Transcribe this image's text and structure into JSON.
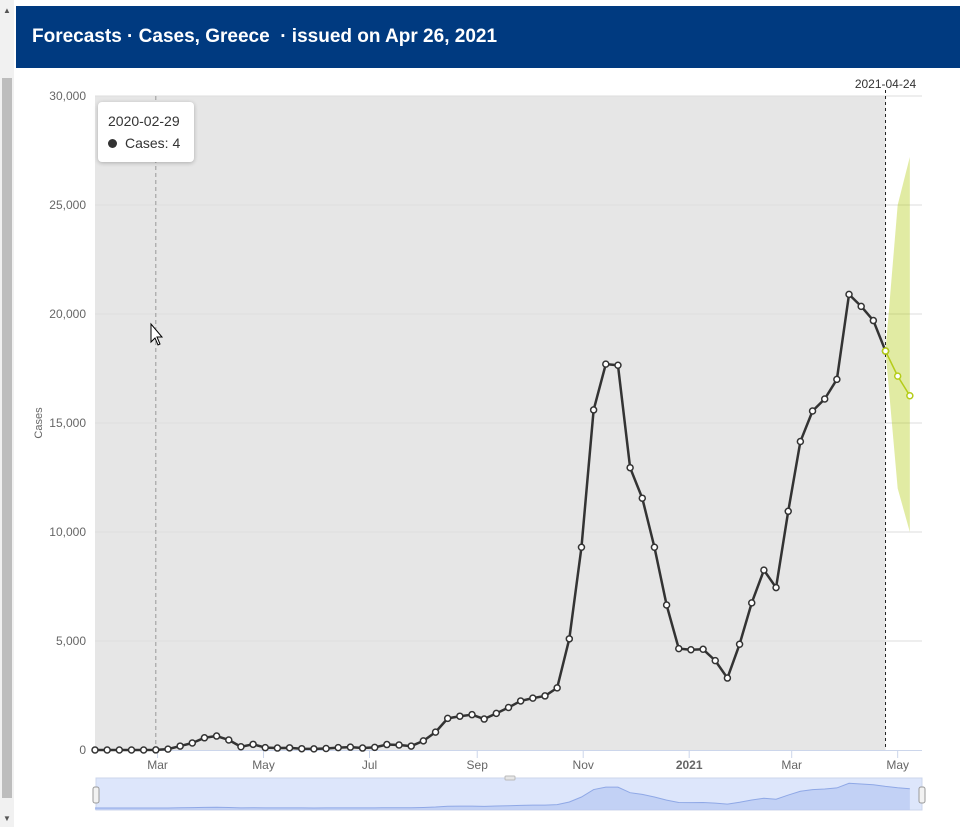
{
  "header": {
    "title": "Forecasts · Cases, Greece  · issued on Apr 26, 2021"
  },
  "colors": {
    "header_bg": "#003a80",
    "series": "#333333",
    "forecast": "#b5cc18",
    "plot_bg": "#e6e6e6"
  },
  "tooltip": {
    "date": "2020-02-29",
    "label": "Cases: 4"
  },
  "chart_data": {
    "type": "line",
    "ylabel": "Cases",
    "ylim": [
      0,
      30000
    ],
    "y_ticks": [
      "0",
      "5,000",
      "10,000",
      "15,000",
      "20,000",
      "25,000",
      "30,000"
    ],
    "x_ticks": [
      "Mar",
      "May",
      "Jul",
      "Sep",
      "Nov",
      "2021",
      "Mar",
      "May"
    ],
    "xlim": [
      "2020-01-25",
      "2021-05-15"
    ],
    "grid": true,
    "cursor_date": "2020-02-29",
    "forecast_marker": {
      "label": "2021-04-24",
      "date": "2021-04-24"
    },
    "series": [
      {
        "name": "Cases",
        "points": [
          [
            "2020-01-25",
            0
          ],
          [
            "2020-02-01",
            0
          ],
          [
            "2020-02-08",
            0
          ],
          [
            "2020-02-15",
            0
          ],
          [
            "2020-02-22",
            0
          ],
          [
            "2020-02-29",
            4
          ],
          [
            "2020-03-07",
            40
          ],
          [
            "2020-03-14",
            180
          ],
          [
            "2020-03-21",
            320
          ],
          [
            "2020-03-28",
            560
          ],
          [
            "2020-04-04",
            640
          ],
          [
            "2020-04-11",
            460
          ],
          [
            "2020-04-18",
            150
          ],
          [
            "2020-04-25",
            260
          ],
          [
            "2020-05-02",
            110
          ],
          [
            "2020-05-09",
            90
          ],
          [
            "2020-05-16",
            100
          ],
          [
            "2020-05-23",
            60
          ],
          [
            "2020-05-30",
            50
          ],
          [
            "2020-06-06",
            70
          ],
          [
            "2020-06-13",
            110
          ],
          [
            "2020-06-20",
            130
          ],
          [
            "2020-06-27",
            90
          ],
          [
            "2020-07-04",
            120
          ],
          [
            "2020-07-11",
            250
          ],
          [
            "2020-07-18",
            230
          ],
          [
            "2020-07-25",
            180
          ],
          [
            "2020-08-01",
            420
          ],
          [
            "2020-08-08",
            820
          ],
          [
            "2020-08-15",
            1450
          ],
          [
            "2020-08-22",
            1550
          ],
          [
            "2020-08-29",
            1620
          ],
          [
            "2020-09-05",
            1420
          ],
          [
            "2020-09-12",
            1680
          ],
          [
            "2020-09-19",
            1950
          ],
          [
            "2020-09-26",
            2250
          ],
          [
            "2020-10-03",
            2380
          ],
          [
            "2020-10-10",
            2480
          ],
          [
            "2020-10-17",
            2850
          ],
          [
            "2020-10-24",
            5100
          ],
          [
            "2020-10-31",
            9300
          ],
          [
            "2020-11-07",
            15600
          ],
          [
            "2020-11-14",
            17700
          ],
          [
            "2020-11-21",
            17650
          ],
          [
            "2020-11-28",
            12950
          ],
          [
            "2020-12-05",
            11550
          ],
          [
            "2020-12-12",
            9300
          ],
          [
            "2020-12-19",
            6650
          ],
          [
            "2020-12-26",
            4650
          ],
          [
            "2021-01-02",
            4600
          ],
          [
            "2021-01-09",
            4620
          ],
          [
            "2021-01-16",
            4100
          ],
          [
            "2021-01-23",
            3300
          ],
          [
            "2021-01-30",
            4850
          ],
          [
            "2021-02-06",
            6750
          ],
          [
            "2021-02-13",
            8250
          ],
          [
            "2021-02-20",
            7450
          ],
          [
            "2021-02-27",
            10950
          ],
          [
            "2021-03-06",
            14150
          ],
          [
            "2021-03-13",
            15550
          ],
          [
            "2021-03-20",
            16100
          ],
          [
            "2021-03-27",
            17000
          ],
          [
            "2021-04-03",
            20900
          ],
          [
            "2021-04-10",
            20350
          ],
          [
            "2021-04-17",
            19700
          ],
          [
            "2021-04-24",
            18300
          ]
        ]
      },
      {
        "name": "Forecast",
        "points": [
          [
            "2021-04-24",
            18300
          ],
          [
            "2021-05-01",
            17150
          ],
          [
            "2021-05-08",
            16250
          ]
        ],
        "interval": [
          [
            "2021-04-24",
            18300,
            18300
          ],
          [
            "2021-05-01",
            12000,
            25000
          ],
          [
            "2021-05-08",
            10000,
            27200
          ]
        ]
      }
    ]
  }
}
